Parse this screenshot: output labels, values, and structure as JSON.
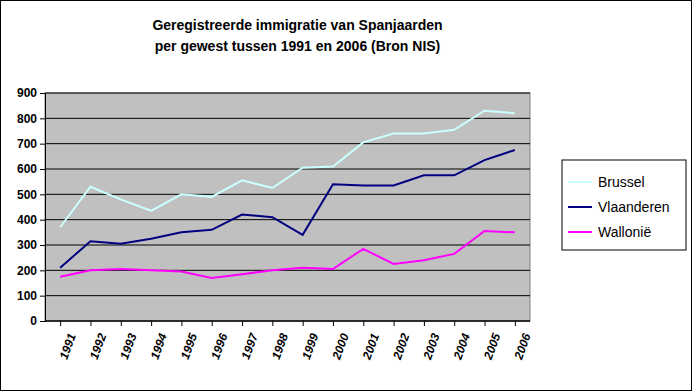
{
  "chart_data": {
    "type": "line",
    "title": [
      "Geregistreerde immigratie van Spanjaarden",
      "per gewest tussen 1991 en 2006 (Bron NIS)"
    ],
    "categories": [
      "1991",
      "1992",
      "1993",
      "1994",
      "1995",
      "1996",
      "1997",
      "1998",
      "1999",
      "2000",
      "2001",
      "2002",
      "2003",
      "2004",
      "2005",
      "2006"
    ],
    "series": [
      {
        "name": "Brussel",
        "color": "#ccffff",
        "values": [
          370,
          530,
          480,
          435,
          500,
          490,
          555,
          525,
          605,
          610,
          705,
          740,
          740,
          755,
          830,
          820
        ]
      },
      {
        "name": "Vlaanderen",
        "color": "#000080",
        "values": [
          210,
          315,
          305,
          325,
          350,
          360,
          420,
          410,
          340,
          540,
          535,
          535,
          575,
          575,
          635,
          675
        ]
      },
      {
        "name": "Wallonië",
        "color": "#ff00ff",
        "values": [
          175,
          200,
          205,
          200,
          195,
          170,
          185,
          200,
          210,
          205,
          285,
          225,
          240,
          265,
          355,
          350
        ]
      }
    ],
    "ylim": [
      0,
      900
    ],
    "yticks": [
      0,
      100,
      200,
      300,
      400,
      500,
      600,
      700,
      800,
      900
    ],
    "grid": true,
    "legend": "right"
  }
}
